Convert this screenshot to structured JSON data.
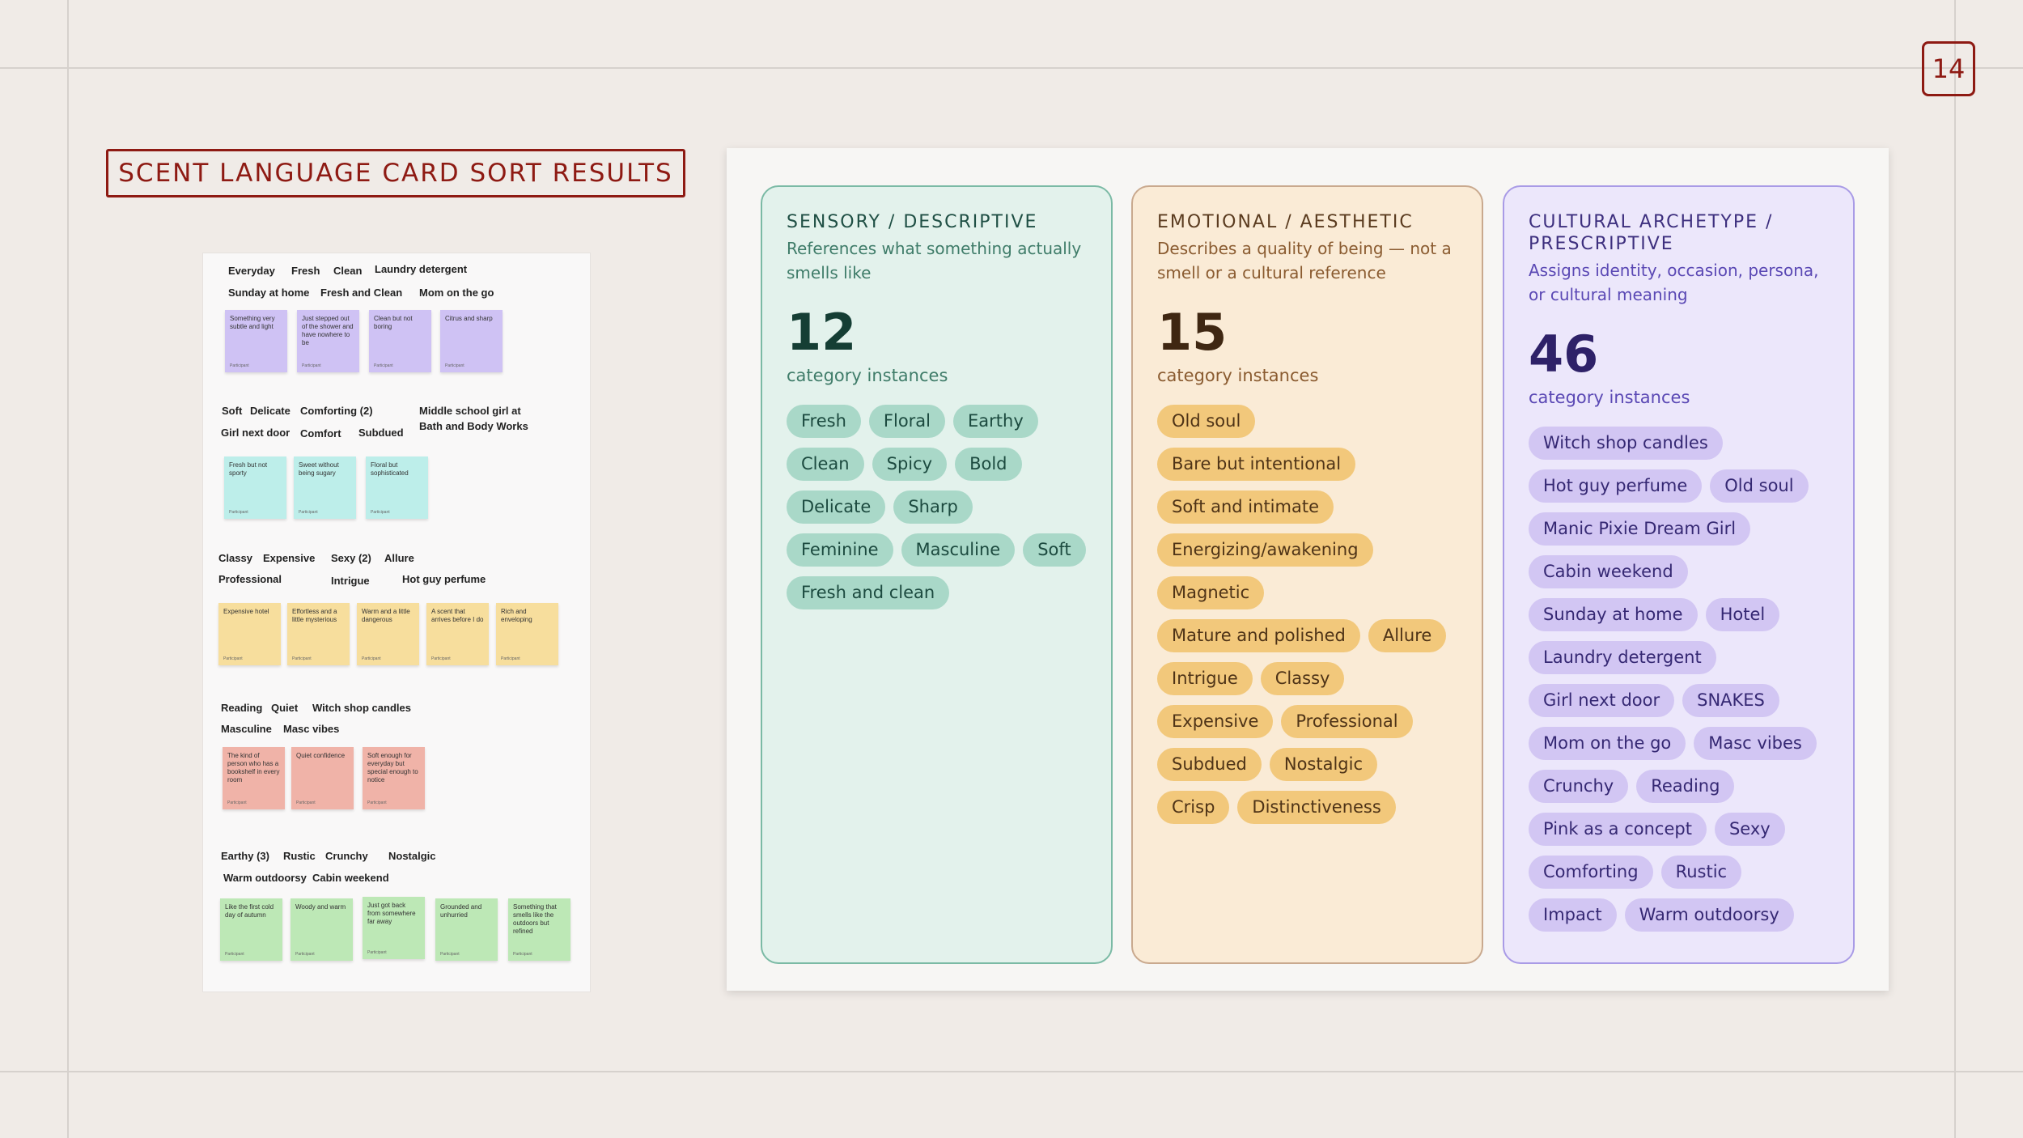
{
  "page": {
    "number": "14",
    "title": "SCENT LANGUAGE CARD SORT RESULTS"
  },
  "board": {
    "labels": [
      "Everyday",
      "Fresh",
      "Clean",
      "Laundry detergent",
      "Sunday at home",
      "Fresh and Clean",
      "Mom on the go",
      "Soft",
      "Delicate",
      "Comforting (2)",
      "Middle school girl at",
      "Bath and Body Works",
      "Girl next door",
      "Comfort",
      "Subdued",
      "Classy",
      "Expensive",
      "Sexy (2)",
      "Allure",
      "Professional",
      "Intrigue",
      "Hot guy perfume",
      "Reading",
      "Quiet",
      "Witch shop candles",
      "Masculine",
      "Masc vibes",
      "Earthy (3)",
      "Rustic",
      "Crunchy",
      "Nostalgic",
      "Warm outdoorsy",
      "Cabin weekend"
    ],
    "stickies": [
      "Something very subtle and light",
      "Just stepped out of the shower and have nowhere to be",
      "Clean but not boring",
      "Citrus and sharp",
      "Fresh but not sporty",
      "Sweet without being sugary",
      "Floral but sophisticated",
      "Expensive hotel",
      "Effortless and a little mysterious",
      "Warm and a little dangerous",
      "A scent that arrives before I do",
      "Rich and enveloping",
      "The kind of person who has a bookshelf in every room",
      "Quiet confidence",
      "Soft enough for everyday but special enough to notice",
      "Like the first cold day of autumn",
      "Woody and warm",
      "Just got back from somewhere far away",
      "Grounded and unhurried",
      "Something that smells like the outdoors but refined"
    ],
    "sticky_footer": "Participant"
  },
  "columns": {
    "sensory": {
      "title": "SENSORY / DESCRIPTIVE",
      "subtitle": "References what something actually smells like",
      "count": "12",
      "count_label": "category instances",
      "chips": [
        "Fresh",
        "Floral",
        "Earthy",
        "Clean",
        "Spicy",
        "Bold",
        "Delicate",
        "Sharp",
        "Feminine",
        "Masculine",
        "Soft",
        "Fresh and clean"
      ]
    },
    "emotional": {
      "title": "EMOTIONAL / AESTHETIC",
      "subtitle": "Describes a quality of being — not a smell or a cultural reference",
      "count": "15",
      "count_label": "category instances",
      "chips": [
        "Old soul",
        "Bare but intentional",
        "Soft and intimate",
        "Energizing/awakening",
        "Magnetic",
        "Mature and polished",
        "Allure",
        "Intrigue",
        "Classy",
        "Expensive",
        "Professional",
        "Subdued",
        "Nostalgic",
        "Crisp",
        "Distinctiveness"
      ]
    },
    "cultural": {
      "title": "CULTURAL ARCHETYPE / PRESCRIPTIVE",
      "subtitle": "Assigns identity, occasion, persona, or cultural meaning",
      "count": "46",
      "count_label": "category instances",
      "chips": [
        "Witch shop candles",
        "Hot guy perfume",
        "Old soul",
        "Manic Pixie Dream Girl",
        "Cabin weekend",
        "Sunday at home",
        "Hotel",
        "Laundry detergent",
        "Girl next door",
        "SNAKES",
        "Mom on the go",
        "Masc vibes",
        "Crunchy",
        "Reading",
        "Pink as a concept",
        "Sexy",
        "Comforting",
        "Rustic",
        "Impact",
        "Warm outdoorsy"
      ]
    }
  }
}
